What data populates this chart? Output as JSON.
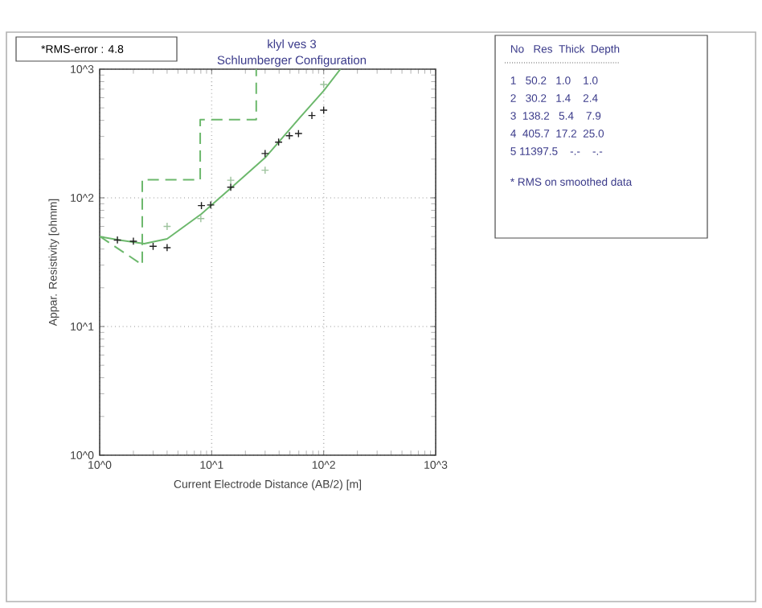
{
  "chart_data": {
    "type": "line",
    "title": "klyl ves  3",
    "subtitle": "Schlumberger Configuration",
    "xlabel": "Current Electrode Distance (AB/2) [m]",
    "ylabel": "Appar. Resistivity [ohmm]",
    "log": "xy",
    "grid": true,
    "xlim": [
      1,
      1000
    ],
    "ylim": [
      1,
      1000
    ],
    "xticks": [
      {
        "value": 1,
        "label": "10^0"
      },
      {
        "value": 10,
        "label": "10^1"
      },
      {
        "value": 100,
        "label": "10^2"
      },
      {
        "value": 1000,
        "label": "10^3"
      }
    ],
    "yticks": [
      {
        "value": 1,
        "label": "10^0"
      },
      {
        "value": 10,
        "label": "10^1"
      },
      {
        "value": 100,
        "label": "10^2"
      },
      {
        "value": 1000,
        "label": "10^3"
      }
    ],
    "series": [
      {
        "type": "scatter",
        "marker": "cross",
        "color": "#202020",
        "x": [
          1.44,
          2.0,
          3.0,
          4.0,
          8.1,
          9.8,
          14.8,
          30,
          39.6,
          49.4,
          59.6,
          78.5,
          100
        ],
        "values": [
          47,
          46,
          42,
          41,
          87,
          88,
          121,
          221,
          271,
          304,
          316,
          436,
          480
        ]
      },
      {
        "type": "scatter",
        "marker": "cross",
        "color": "#9cc29c",
        "x": [
          4.0,
          8.0,
          14.8,
          30,
          100
        ],
        "values": [
          60,
          69,
          137,
          164,
          760
        ]
      },
      {
        "line_style": "solid",
        "color": "#6cb86c",
        "x": [
          1,
          1.5,
          2.5,
          4.0,
          8.1,
          14.8,
          30,
          61.6,
          100,
          141
        ],
        "values": [
          50,
          47,
          44,
          48,
          75,
          119,
          205,
          422,
          680,
          1000
        ]
      },
      {
        "line_style": "dashed",
        "color": "#6cb86c",
        "x": [
          1,
          2.4,
          2.4,
          7.9,
          7.9,
          25,
          25
        ],
        "values": [
          50.2,
          30.2,
          138.2,
          138.2,
          405.7,
          405.7,
          1000
        ]
      }
    ],
    "annotations": [
      "*RMS-error :  4.8",
      "No   Res  Thick  Depth",
      "1   50.2   1.0    1.0",
      "2   30.2   1.4    2.4",
      "3  138.2   5.4    7.9",
      "4  405.7  17.2  25.0",
      "5 11397.5    -.-    -.-",
      "* RMS on smoothed data"
    ]
  }
}
